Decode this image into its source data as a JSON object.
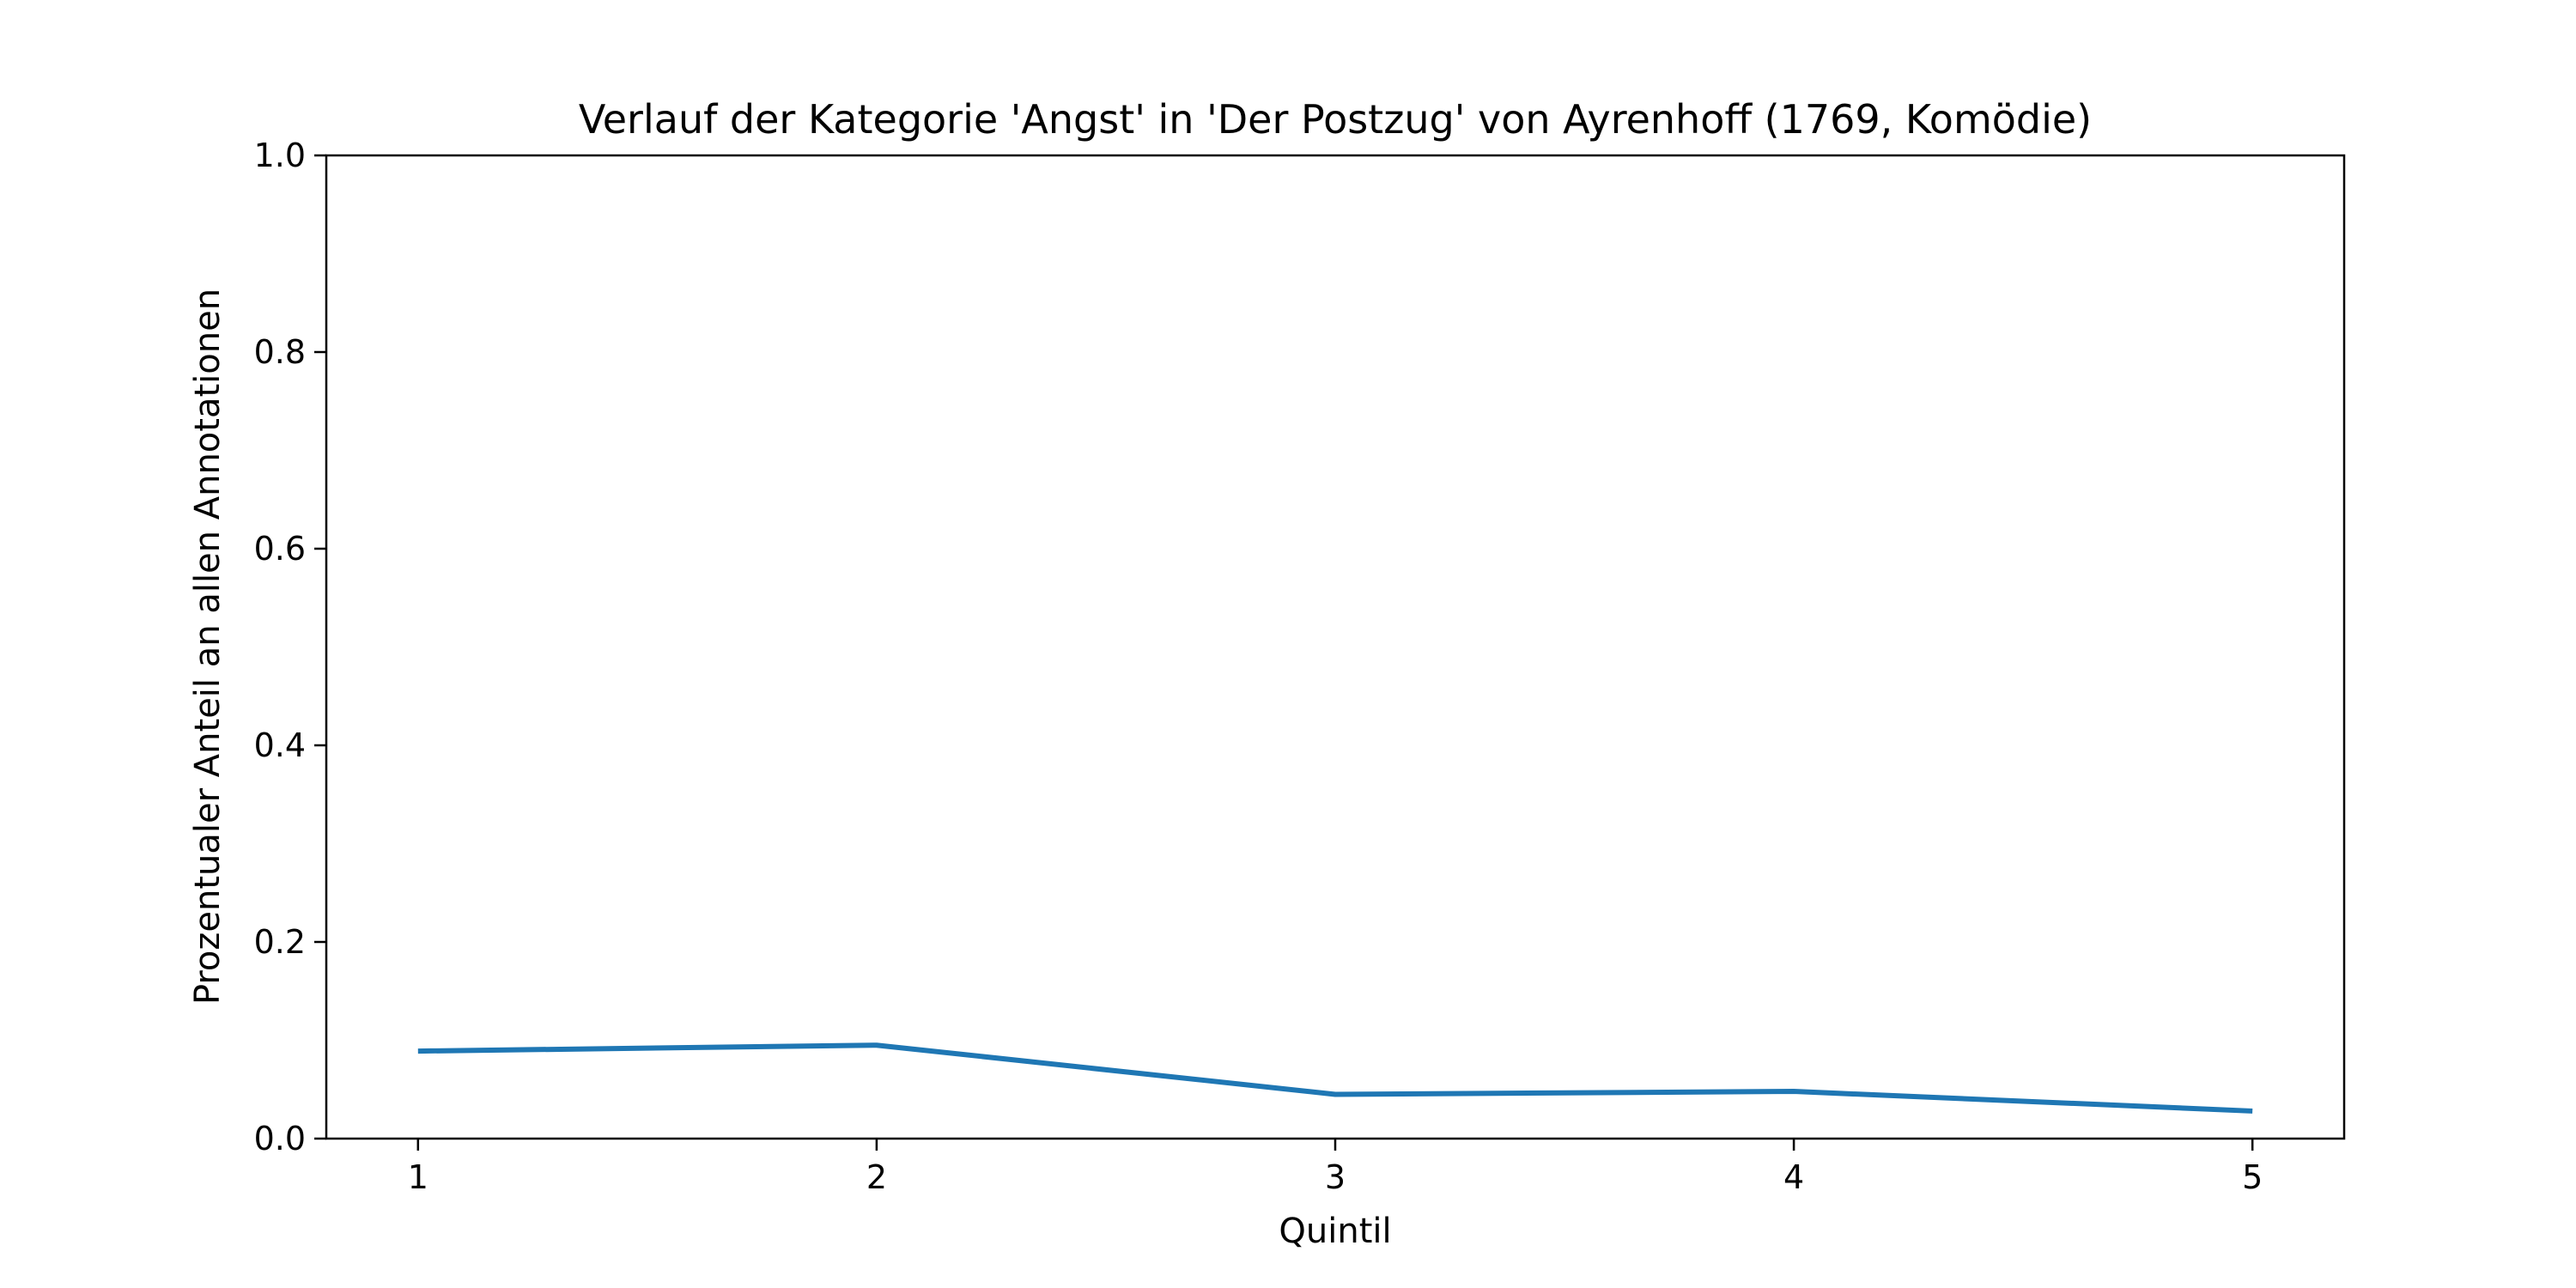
{
  "chart_data": {
    "type": "line",
    "title": "Verlauf der Kategorie 'Angst' in 'Der Postzug' von Ayrenhoff (1769, Komödie)",
    "xlabel": "Quintil",
    "ylabel": "Prozentualer Anteil an allen Annotationen",
    "x": [
      1,
      2,
      3,
      4,
      5
    ],
    "xticks": [
      "1",
      "2",
      "3",
      "4",
      "5"
    ],
    "yticks": [
      "0.0",
      "0.2",
      "0.4",
      "0.6",
      "0.8",
      "1.0"
    ],
    "ylim": [
      0,
      1
    ],
    "xlim": [
      0.8,
      5.2
    ],
    "grid": false,
    "series": [
      {
        "values": [
          0.089,
          0.095,
          0.045,
          0.048,
          0.028
        ],
        "color": "#1f77b4"
      }
    ]
  }
}
